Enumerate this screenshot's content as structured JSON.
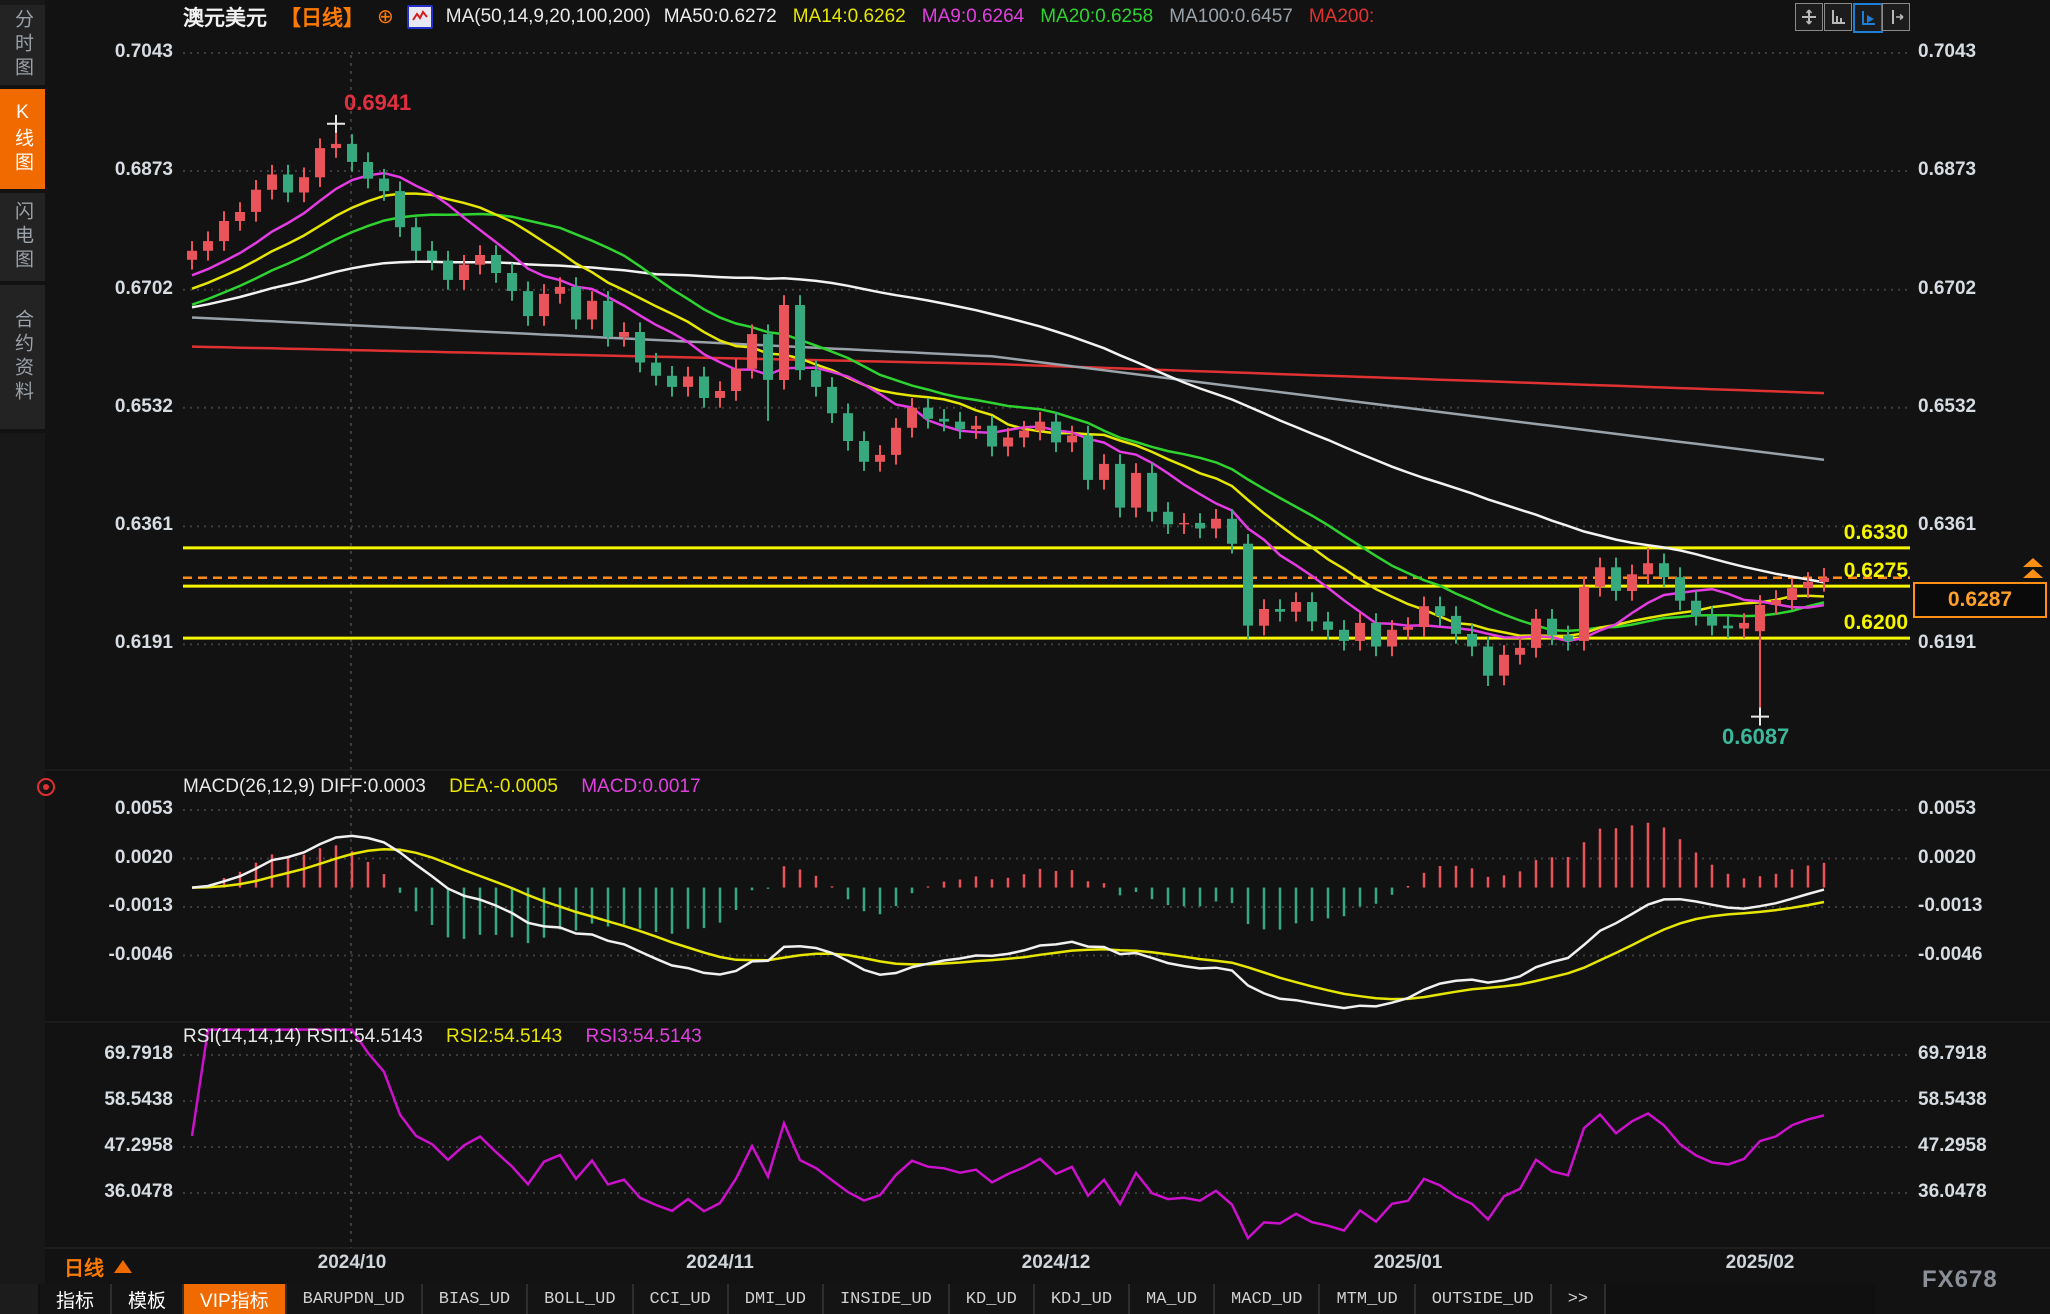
{
  "sidebar": {
    "tabs": [
      {
        "label": "分时图",
        "active": false
      },
      {
        "label": "K线图",
        "active": true
      },
      {
        "label": "闪电图",
        "active": false
      },
      {
        "label": "合约资料",
        "active": false
      }
    ]
  },
  "header": {
    "symbol": "澳元美元",
    "period_tag": "【日线】",
    "plus_icon": "⊕",
    "ma_settings": "MA(50,14,9,20,100,200)",
    "ma_values": [
      {
        "label": "MA50:0.6272",
        "color": "#ededed"
      },
      {
        "label": "MA14:0.6262",
        "color": "#e6e600"
      },
      {
        "label": "MA9:0.6264",
        "color": "#e040e0"
      },
      {
        "label": "MA20:0.6258",
        "color": "#2fd32f"
      },
      {
        "label": "MA100:0.6457",
        "color": "#9aa2aa"
      },
      {
        "label": "MA200:",
        "color": "#e03232"
      }
    ],
    "tool_icons": [
      {
        "name": "move-tool-icon",
        "active": false
      },
      {
        "name": "axis-scale-icon",
        "active": false
      },
      {
        "name": "auto-scroll-icon",
        "active": true
      },
      {
        "name": "page-shift-icon",
        "active": false
      }
    ]
  },
  "annotations": {
    "high": "0.6941",
    "low": "0.6087",
    "current_price": "0.6287"
  },
  "macd_panel": {
    "title": "MACD(26,12,9) DIFF:0.0003",
    "dea": "DEA:-0.0005",
    "macd": "MACD:0.0017",
    "axis": [
      "0.0053",
      "0.0020",
      "-0.0013",
      "-0.0046"
    ]
  },
  "rsi_panel": {
    "title": "RSI(14,14,14) RSI1:54.5143",
    "rsi2": "RSI2:54.5143",
    "rsi3": "RSI3:54.5143",
    "axis": [
      "69.7918",
      "58.5438",
      "47.2958",
      "36.0478"
    ]
  },
  "bottom_bar": {
    "period": "日线",
    "tabs": [
      "指标",
      "模板",
      "VIP指标",
      "BARUPDN_UD",
      "BIAS_UD",
      "BOLL_UD",
      "CCI_UD",
      "DMI_UD",
      "INSIDE_UD",
      "KD_UD",
      "KDJ_UD",
      "MA_UD",
      "MACD_UD",
      "MTM_UD",
      "OUTSIDE_UD",
      ">>"
    ]
  },
  "watermark": "FX678",
  "colors": {
    "up": "#e9545b",
    "down": "#36a97e",
    "level_yellow": "#f5f500",
    "current_orange": "#ff8c1a",
    "ma9": "#e23ce2",
    "ma14": "#e6e600",
    "ma20": "#2fd32f",
    "ma50": "#f2f2f2",
    "ma100": "#9aa2aa",
    "ma200": "#e03232",
    "diff": "#f0f0f0",
    "dea": "#e6e600",
    "rsi": "#cc10cc",
    "grid": "#3e3e3e",
    "axis_text": "#d6dce2"
  },
  "chart_data": {
    "type": "candlestick",
    "title": "澳元美元 日线 (AUD/USD daily)",
    "ohlc_format": [
      "open",
      "high",
      "low",
      "close"
    ],
    "y_axis_prices": [
      0.7043,
      0.6873,
      0.6702,
      0.6532,
      0.6361,
      0.6191
    ],
    "levels": [
      {
        "label": "0.6330",
        "price": 0.633
      },
      {
        "label": "0.6275",
        "price": 0.6275
      },
      {
        "label": "0.6200",
        "price": 0.62
      }
    ],
    "current": {
      "label": "0.6287",
      "price": 0.6287
    },
    "high_marker": {
      "price": 0.6941,
      "index": 9
    },
    "low_marker": {
      "price": 0.6087,
      "index": 98
    },
    "month_ticks": [
      {
        "label": "2024/10",
        "index": 10
      },
      {
        "label": "2024/11",
        "index": 33
      },
      {
        "label": "2024/12",
        "index": 54
      },
      {
        "label": "2025/01",
        "index": 76
      },
      {
        "label": "2025/02",
        "index": 98
      }
    ],
    "macd": {
      "diff": 0.0003,
      "dea": -0.0005,
      "macd": 0.0017,
      "axis_values": [
        0.0053,
        0.002,
        -0.0013,
        -0.0046
      ]
    },
    "rsi": {
      "rsi1": 54.5143,
      "rsi2": 54.5143,
      "rsi3": 54.5143,
      "axis_values": [
        69.7918,
        58.5438,
        47.2958,
        36.0478
      ]
    },
    "ma100_anchors": [
      [
        0,
        0.6662
      ],
      [
        50,
        0.6606
      ],
      [
        102,
        0.6457
      ]
    ],
    "ma200_anchors": [
      [
        0,
        0.662
      ],
      [
        50,
        0.6595
      ],
      [
        102,
        0.6553
      ]
    ],
    "candles": [
      [
        0.6745,
        0.6772,
        0.6731,
        0.6758
      ],
      [
        0.6758,
        0.6786,
        0.6744,
        0.6772
      ],
      [
        0.6772,
        0.6815,
        0.6758,
        0.6801
      ],
      [
        0.6801,
        0.6828,
        0.6787,
        0.6814
      ],
      [
        0.6814,
        0.686,
        0.68,
        0.6846
      ],
      [
        0.6846,
        0.6882,
        0.6832,
        0.6868
      ],
      [
        0.6868,
        0.6882,
        0.6828,
        0.6842
      ],
      [
        0.6842,
        0.6878,
        0.6828,
        0.6864
      ],
      [
        0.6864,
        0.692,
        0.685,
        0.6906
      ],
      [
        0.6906,
        0.6941,
        0.6892,
        0.6912
      ],
      [
        0.6912,
        0.6926,
        0.6872,
        0.6886
      ],
      [
        0.6886,
        0.69,
        0.6848,
        0.6862
      ],
      [
        0.6862,
        0.6876,
        0.683,
        0.6844
      ],
      [
        0.6844,
        0.6858,
        0.6778,
        0.6792
      ],
      [
        0.6792,
        0.6806,
        0.6744,
        0.6758
      ],
      [
        0.6758,
        0.6772,
        0.673,
        0.6744
      ],
      [
        0.6744,
        0.6758,
        0.6702,
        0.6716
      ],
      [
        0.6716,
        0.6752,
        0.6702,
        0.6738
      ],
      [
        0.6738,
        0.6766,
        0.6724,
        0.6752
      ],
      [
        0.6752,
        0.6766,
        0.6712,
        0.6726
      ],
      [
        0.6726,
        0.674,
        0.6686,
        0.67
      ],
      [
        0.67,
        0.6714,
        0.665,
        0.6664
      ],
      [
        0.6664,
        0.671,
        0.665,
        0.6696
      ],
      [
        0.6696,
        0.672,
        0.6682,
        0.6706
      ],
      [
        0.6706,
        0.672,
        0.6645,
        0.6659
      ],
      [
        0.6659,
        0.67,
        0.6645,
        0.6686
      ],
      [
        0.6686,
        0.67,
        0.662,
        0.6634
      ],
      [
        0.6634,
        0.6655,
        0.662,
        0.6641
      ],
      [
        0.6641,
        0.6655,
        0.6583,
        0.6597
      ],
      [
        0.6597,
        0.6611,
        0.6564,
        0.6578
      ],
      [
        0.6578,
        0.6592,
        0.6548,
        0.6562
      ],
      [
        0.6562,
        0.6591,
        0.6548,
        0.6577
      ],
      [
        0.6577,
        0.6591,
        0.6532,
        0.6546
      ],
      [
        0.6546,
        0.657,
        0.6532,
        0.6556
      ],
      [
        0.6556,
        0.6602,
        0.6542,
        0.6588
      ],
      [
        0.6588,
        0.6652,
        0.6574,
        0.6638
      ],
      [
        0.6638,
        0.6652,
        0.6513,
        0.6572
      ],
      [
        0.6572,
        0.6694,
        0.6558,
        0.668
      ],
      [
        0.668,
        0.6694,
        0.6572,
        0.6586
      ],
      [
        0.6586,
        0.66,
        0.6548,
        0.6562
      ],
      [
        0.6562,
        0.6576,
        0.651,
        0.6524
      ],
      [
        0.6524,
        0.6538,
        0.647,
        0.6484
      ],
      [
        0.6484,
        0.6498,
        0.6441,
        0.6454
      ],
      [
        0.6454,
        0.6478,
        0.644,
        0.6464
      ],
      [
        0.6464,
        0.6517,
        0.645,
        0.6503
      ],
      [
        0.6503,
        0.6546,
        0.6489,
        0.6532
      ],
      [
        0.6532,
        0.6546,
        0.6502,
        0.6516
      ],
      [
        0.6516,
        0.653,
        0.6498,
        0.6512
      ],
      [
        0.6512,
        0.6526,
        0.6487,
        0.6501
      ],
      [
        0.6501,
        0.652,
        0.6487,
        0.6506
      ],
      [
        0.6506,
        0.652,
        0.6462,
        0.6476
      ],
      [
        0.6476,
        0.6503,
        0.6462,
        0.6489
      ],
      [
        0.6489,
        0.6513,
        0.6475,
        0.6499
      ],
      [
        0.6499,
        0.6526,
        0.6485,
        0.6512
      ],
      [
        0.6512,
        0.6526,
        0.6468,
        0.6482
      ],
      [
        0.6482,
        0.6506,
        0.6468,
        0.6492
      ],
      [
        0.6492,
        0.6506,
        0.6414,
        0.6428
      ],
      [
        0.6428,
        0.6465,
        0.6414,
        0.6451
      ],
      [
        0.6451,
        0.6465,
        0.6374,
        0.6388
      ],
      [
        0.6388,
        0.6452,
        0.6374,
        0.6438
      ],
      [
        0.6438,
        0.6452,
        0.6368,
        0.6382
      ],
      [
        0.6382,
        0.6396,
        0.635,
        0.6364
      ],
      [
        0.6364,
        0.638,
        0.635,
        0.6366
      ],
      [
        0.6366,
        0.638,
        0.6344,
        0.6358
      ],
      [
        0.6358,
        0.6386,
        0.6344,
        0.6372
      ],
      [
        0.6372,
        0.6386,
        0.6322,
        0.6336
      ],
      [
        0.6336,
        0.635,
        0.6199,
        0.6218
      ],
      [
        0.6218,
        0.6256,
        0.6204,
        0.6242
      ],
      [
        0.6242,
        0.6256,
        0.6224,
        0.6238
      ],
      [
        0.6238,
        0.6266,
        0.6224,
        0.6252
      ],
      [
        0.6252,
        0.6266,
        0.621,
        0.6224
      ],
      [
        0.6224,
        0.6238,
        0.6198,
        0.6212
      ],
      [
        0.6212,
        0.6226,
        0.6182,
        0.6196
      ],
      [
        0.6196,
        0.6236,
        0.6182,
        0.6222
      ],
      [
        0.6222,
        0.6236,
        0.6174,
        0.6188
      ],
      [
        0.6188,
        0.6226,
        0.6174,
        0.6212
      ],
      [
        0.6212,
        0.623,
        0.6198,
        0.6216
      ],
      [
        0.6216,
        0.626,
        0.6202,
        0.6246
      ],
      [
        0.6246,
        0.626,
        0.6218,
        0.6232
      ],
      [
        0.6232,
        0.6246,
        0.6192,
        0.6206
      ],
      [
        0.6206,
        0.622,
        0.6174,
        0.6188
      ],
      [
        0.6188,
        0.6202,
        0.6131,
        0.6146
      ],
      [
        0.6146,
        0.619,
        0.6132,
        0.6176
      ],
      [
        0.6176,
        0.62,
        0.6162,
        0.6186
      ],
      [
        0.6186,
        0.6242,
        0.6172,
        0.6228
      ],
      [
        0.6228,
        0.6242,
        0.619,
        0.6204
      ],
      [
        0.6204,
        0.6218,
        0.6182,
        0.6196
      ],
      [
        0.6196,
        0.6288,
        0.6182,
        0.6274
      ],
      [
        0.6274,
        0.6316,
        0.626,
        0.6302
      ],
      [
        0.6302,
        0.6316,
        0.6254,
        0.6268
      ],
      [
        0.6268,
        0.6306,
        0.6254,
        0.6292
      ],
      [
        0.6292,
        0.633,
        0.6278,
        0.6308
      ],
      [
        0.6308,
        0.6322,
        0.6274,
        0.6288
      ],
      [
        0.6288,
        0.6302,
        0.624,
        0.6254
      ],
      [
        0.6254,
        0.6268,
        0.6218,
        0.6232
      ],
      [
        0.6232,
        0.6246,
        0.6204,
        0.6218
      ],
      [
        0.6218,
        0.6232,
        0.62,
        0.6214
      ],
      [
        0.6214,
        0.6236,
        0.62,
        0.6222
      ],
      [
        0.621,
        0.6262,
        0.6087,
        0.6248
      ],
      [
        0.6248,
        0.6269,
        0.6234,
        0.6255
      ],
      [
        0.6255,
        0.6286,
        0.6241,
        0.6272
      ],
      [
        0.6272,
        0.6295,
        0.6258,
        0.6281
      ],
      [
        0.6281,
        0.6301,
        0.6267,
        0.6287
      ]
    ]
  }
}
